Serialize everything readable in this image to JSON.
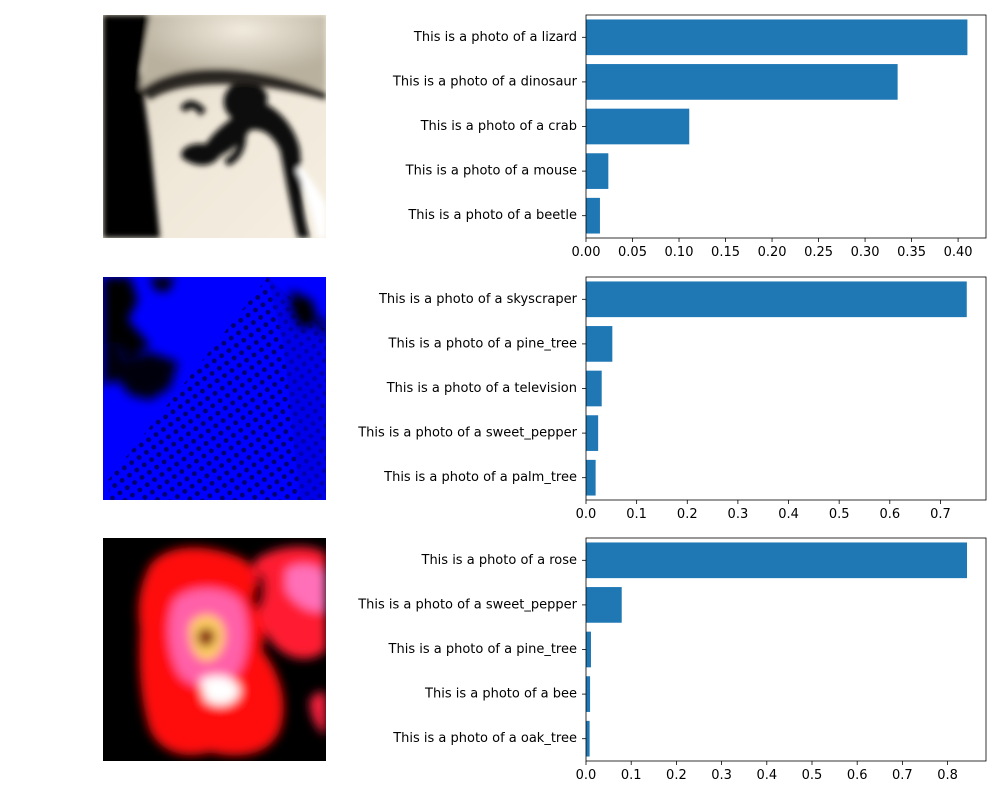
{
  "chart_data": [
    {
      "type": "bar",
      "orientation": "horizontal",
      "image": {
        "description": "grayscale-beige image with dark lizard silhouette",
        "palette": [
          "#000000",
          "#efe6d6",
          "#d9cdb8",
          "#1a1a1a"
        ]
      },
      "categories": [
        "This is a photo of a lizard",
        "This is a photo of a dinosaur",
        "This is a photo of a crab",
        "This is a photo of a mouse",
        "This is a photo of a beetle"
      ],
      "values": [
        0.41,
        0.335,
        0.111,
        0.024,
        0.015
      ],
      "xlim": [
        0,
        0.43
      ],
      "xticks": [
        0.0,
        0.05,
        0.1,
        0.15,
        0.2,
        0.25,
        0.3,
        0.35,
        0.4
      ],
      "xtick_labels": [
        "0.00",
        "0.05",
        "0.10",
        "0.15",
        "0.20",
        "0.25",
        "0.30",
        "0.35",
        "0.40"
      ],
      "bar_color": "#1f77b4",
      "grid": false
    },
    {
      "type": "bar",
      "orientation": "horizontal",
      "image": {
        "description": "blue skyscraper facade with black sky patches",
        "palette": [
          "#0000ff",
          "#000000",
          "#1010a0"
        ]
      },
      "categories": [
        "This is a photo of a skyscraper",
        "This is a photo of a pine_tree",
        "This is a photo of a television",
        "This is a photo of a sweet_pepper",
        "This is a photo of a palm_tree"
      ],
      "values": [
        0.752,
        0.052,
        0.031,
        0.024,
        0.019
      ],
      "xlim": [
        0,
        0.79
      ],
      "xticks": [
        0,
        0.1,
        0.2,
        0.3,
        0.4,
        0.5,
        0.6,
        0.7
      ],
      "xtick_labels": [
        "0.0",
        "0.1",
        "0.2",
        "0.3",
        "0.4",
        "0.5",
        "0.6",
        "0.7"
      ],
      "bar_color": "#1f77b4",
      "grid": false
    },
    {
      "type": "bar",
      "orientation": "horizontal",
      "image": {
        "description": "red and pink rose on black background",
        "palette": [
          "#ff0000",
          "#ff40a0",
          "#000000",
          "#ffe080"
        ]
      },
      "categories": [
        "This is a photo of a rose",
        "This is a photo of a sweet_pepper",
        "This is a photo of a pine_tree",
        "This is a photo of a bee",
        "This is a photo of a oak_tree"
      ],
      "values": [
        0.843,
        0.079,
        0.011,
        0.009,
        0.008
      ],
      "xlim": [
        0,
        0.885
      ],
      "xticks": [
        0,
        0.1,
        0.2,
        0.3,
        0.4,
        0.5,
        0.6,
        0.7,
        0.8
      ],
      "xtick_labels": [
        "0.0",
        "0.1",
        "0.2",
        "0.3",
        "0.4",
        "0.5",
        "0.6",
        "0.7",
        "0.8"
      ],
      "bar_color": "#1f77b4",
      "grid": false
    }
  ]
}
